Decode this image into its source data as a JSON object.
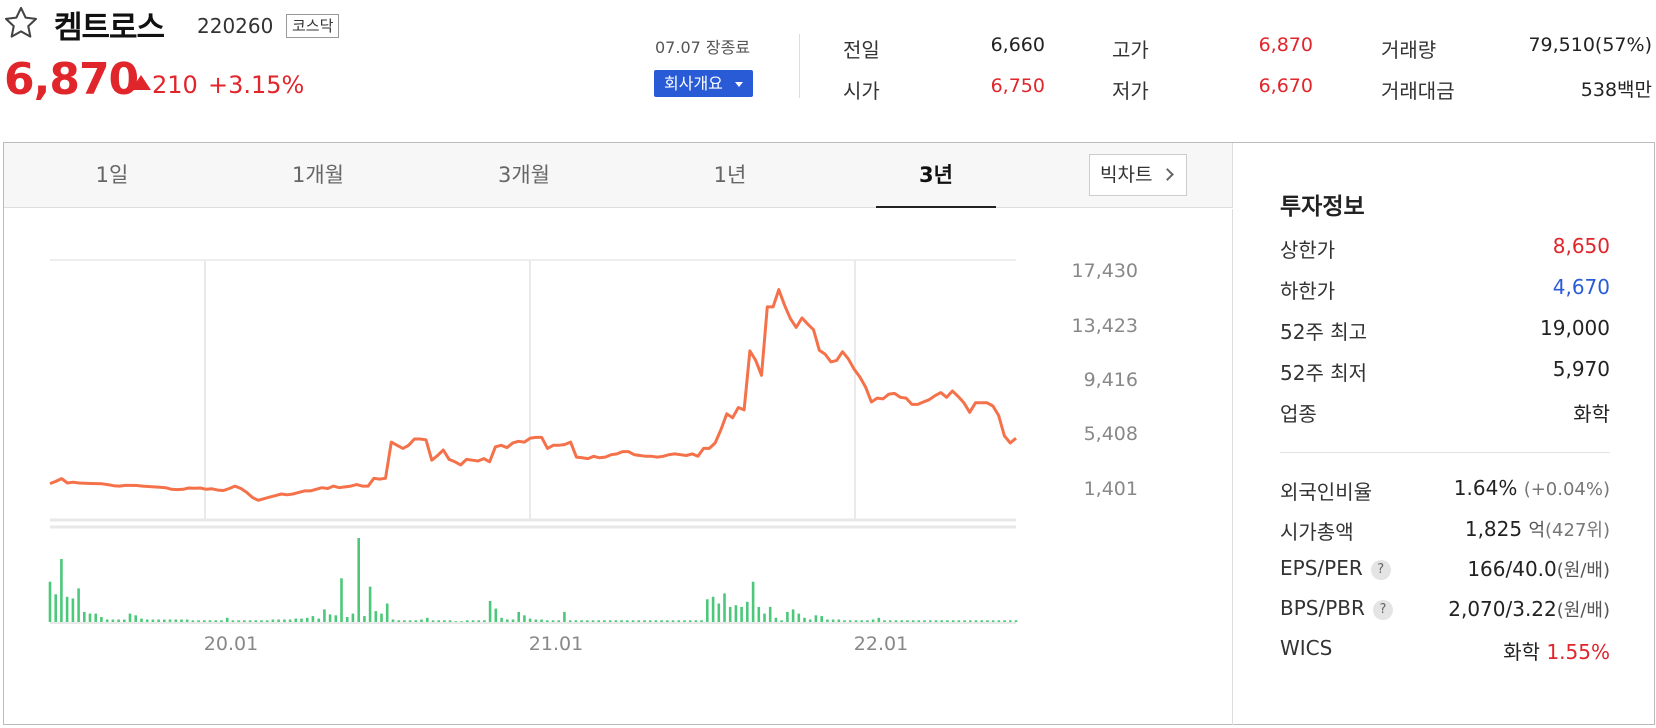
{
  "header": {
    "name": "켐트로스",
    "code": "220260",
    "market": "코스닥",
    "price": "6,870",
    "change": "210",
    "change_rate": "+3.15%",
    "market_time": "07.07 장종료",
    "company_btn": "회사개요",
    "quote": {
      "prev_label": "전일",
      "prev": "6,660",
      "open_label": "시가",
      "open": "6,750",
      "high_label": "고가",
      "high": "6,870",
      "low_label": "저가",
      "low": "6,670",
      "volume_label": "거래량",
      "volume": "79,510(57%)",
      "amount_label": "거래대금",
      "amount": "538백만"
    }
  },
  "tabs": [
    {
      "label": "1일"
    },
    {
      "label": "1개월"
    },
    {
      "label": "3개월"
    },
    {
      "label": "1년"
    },
    {
      "label": "3년",
      "active": true
    }
  ],
  "bigchart_label": "빅차트",
  "colors": {
    "up": "#e0252b",
    "down": "#2a5bd7",
    "line": "#f4714a",
    "volume": "#4cc87a"
  },
  "chart_data": {
    "type": "line",
    "x_tick_labels": [
      "20.01",
      "21.01",
      "22.01"
    ],
    "y_tick_labels": [
      "17,430",
      "13,423",
      "9,416",
      "5,408",
      "1,401"
    ],
    "ylim": [
      1401,
      17430
    ],
    "grid": true,
    "price": [
      3460,
      3600,
      3780,
      3500,
      3550,
      3500,
      3480,
      3470,
      3460,
      3450,
      3400,
      3330,
      3300,
      3350,
      3350,
      3340,
      3300,
      3280,
      3250,
      3230,
      3200,
      3100,
      3080,
      3100,
      3180,
      3160,
      3180,
      3100,
      3130,
      3050,
      3020,
      3150,
      3300,
      3150,
      2900,
      2580,
      2400,
      2500,
      2600,
      2700,
      2800,
      2750,
      2800,
      2900,
      3000,
      3000,
      3100,
      3200,
      3150,
      3300,
      3200,
      3250,
      3300,
      3400,
      3300,
      3300,
      3800,
      3750,
      3800,
      6100,
      5900,
      5700,
      5900,
      6300,
      6300,
      6250,
      4950,
      5250,
      5600,
      5000,
      4850,
      4650,
      5000,
      4950,
      4900,
      5050,
      4850,
      5800,
      5900,
      5750,
      6050,
      6150,
      6100,
      6350,
      6400,
      6400,
      5700,
      5900,
      5900,
      5950,
      6100,
      5150,
      5100,
      5050,
      5200,
      5100,
      5150,
      5300,
      5350,
      5500,
      5500,
      5300,
      5250,
      5200,
      5200,
      5150,
      5200,
      5300,
      5350,
      5300,
      5250,
      5350,
      5200,
      5700,
      5700,
      6050,
      6900,
      7900,
      7650,
      8300,
      8150,
      11900,
      11300,
      10350,
      14700,
      14700,
      15800,
      14800,
      13950,
      13400,
      14000,
      13600,
      13250,
      11950,
      11700,
      11200,
      11300,
      11850,
      11400,
      10750,
      10250,
      9600,
      8650,
      8900,
      8850,
      9150,
      9200,
      8950,
      8900,
      8500,
      8500,
      8650,
      8800,
      9050,
      9250,
      8950,
      9350,
      9000,
      8600,
      8000,
      8600,
      8600,
      8600,
      8400,
      7800,
      6500,
      6050,
      6350
    ],
    "volume": [
      48,
      33,
      75,
      30,
      28,
      40,
      12,
      10,
      10,
      6,
      3,
      3,
      3,
      3,
      10,
      8,
      4,
      3,
      3,
      3,
      3,
      3,
      3,
      3,
      3,
      2,
      2,
      2,
      2,
      2,
      2,
      5,
      2,
      2,
      2,
      2,
      2,
      2,
      2,
      3,
      3,
      3,
      3,
      4,
      4,
      5,
      7,
      4,
      15,
      9,
      8,
      52,
      6,
      10,
      100,
      7,
      42,
      13,
      10,
      22,
      3,
      2,
      2,
      2,
      2,
      3,
      5,
      2,
      2,
      2,
      2,
      1,
      1,
      2,
      2,
      2,
      2,
      25,
      16,
      5,
      3,
      3,
      12,
      8,
      4,
      3,
      3,
      2,
      2,
      2,
      12,
      2,
      2,
      2,
      2,
      2,
      2,
      2,
      2,
      2,
      2,
      2,
      2,
      2,
      2,
      2,
      2,
      2,
      2,
      2,
      2,
      2,
      2,
      2,
      2,
      27,
      30,
      22,
      34,
      18,
      20,
      18,
      24,
      48,
      18,
      10,
      18,
      5,
      2,
      12,
      15,
      10,
      5,
      3,
      8,
      7,
      3,
      3,
      3,
      2,
      2,
      2,
      2,
      2,
      3,
      5,
      2,
      2,
      2,
      2,
      2,
      2,
      2,
      2,
      2,
      2,
      2,
      2,
      2,
      2,
      2,
      2,
      2,
      2,
      2,
      2,
      2,
      2,
      2,
      2
    ]
  },
  "invest": {
    "title": "투자정보",
    "rows1": [
      {
        "label": "상한가",
        "value": "8,650",
        "tone": "up"
      },
      {
        "label": "하한가",
        "value": "4,670",
        "tone": "down"
      },
      {
        "label": "52주 최고",
        "value": "19,000"
      },
      {
        "label": "52주 최저",
        "value": "5,970"
      },
      {
        "label": "업종",
        "value": "화학"
      }
    ],
    "foreign": {
      "label": "외국인비율",
      "value": "1.64%",
      "sub": "(+0.04%)"
    },
    "cap": {
      "label": "시가총액",
      "value": "1,825",
      "unit": "억",
      "sub": "(427위)"
    },
    "eps": {
      "label": "EPS/PER",
      "value": "166/40.0",
      "unit": "(원/배)"
    },
    "bps": {
      "label": "BPS/PBR",
      "value": "2,070/3.22",
      "unit": "(원/배)"
    },
    "help_glyph": "?",
    "wics": {
      "label": "WICS",
      "value": "화학",
      "rate": "1.55%"
    }
  }
}
